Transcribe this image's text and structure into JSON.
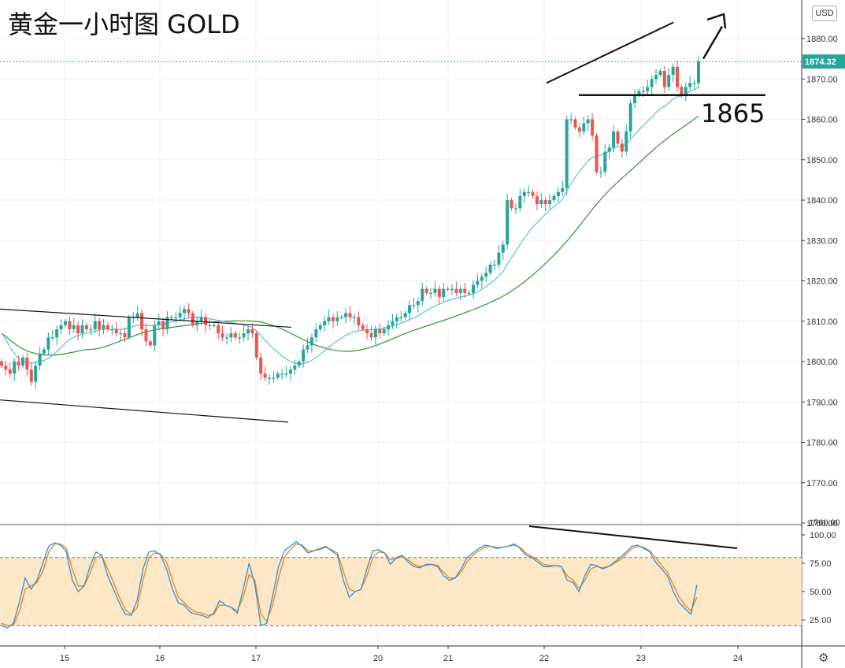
{
  "title": "黄金一小时图 GOLD",
  "currency_button": "USD",
  "settings_icon": "gear-icon",
  "colors": {
    "up": "#26a69a",
    "down": "#ef5350",
    "ma_fast": "#5bc0de",
    "ma_slow": "#3d8f3d",
    "stoch_k": "#2b95d6",
    "stoch_d": "#f0821e",
    "band": "#fde7c6",
    "price_tag": "#26a69a"
  },
  "chart_data": [
    {
      "type": "candlestick",
      "title": "黄金一小时图 GOLD",
      "currency": "USD",
      "y_ticks": [
        1760,
        1770,
        1780,
        1790,
        1800,
        1810,
        1820,
        1830,
        1840,
        1850,
        1860,
        1870,
        1880
      ],
      "y_tick_labels": [
        "1760.00",
        "1770.00",
        "1780.00",
        "1790.00",
        "1800.00",
        "1810.00",
        "1820.00",
        "1830.00",
        "1840.00",
        "1850.00",
        "1860.00",
        "1870.00",
        "1880.00"
      ],
      "ylim": [
        1757.5,
        1886.5
      ],
      "last_price": 1874.32,
      "last_price_label": "1874.32",
      "x_tick_labels": [
        "15",
        "16",
        "17",
        "20",
        "21",
        "22",
        "23",
        "24"
      ],
      "grid": true,
      "closes": [
        1799,
        1798,
        1797,
        1800,
        1799,
        1801,
        1798,
        1795,
        1799,
        1802,
        1803,
        1806,
        1806,
        1808,
        1809,
        1810,
        1808,
        1809,
        1807,
        1809,
        1808,
        1808,
        1810,
        1808,
        1809,
        1808,
        1808,
        1807,
        1807,
        1806,
        1811,
        1811,
        1812,
        1808,
        1805,
        1804,
        1809,
        1810,
        1808,
        1811,
        1811,
        1811,
        1812,
        1813,
        1812,
        1809,
        1810,
        1811,
        1809,
        1809,
        1809,
        1807,
        1806,
        1806,
        1807,
        1806,
        1806,
        1807,
        1808,
        1807,
        1801,
        1797,
        1796,
        1796,
        1796,
        1797,
        1797,
        1797,
        1798,
        1799,
        1800,
        1803,
        1804,
        1806,
        1808,
        1809,
        1810,
        1811,
        1810,
        1811,
        1811,
        1812,
        1811,
        1811,
        1809,
        1808,
        1807,
        1806,
        1808,
        1807,
        1808,
        1809,
        1810,
        1811,
        1811,
        1812,
        1814,
        1814,
        1815,
        1818,
        1817,
        1817,
        1818,
        1816,
        1818,
        1818,
        1818,
        1817,
        1818,
        1817,
        1817,
        1819,
        1820,
        1821,
        1822,
        1824,
        1824,
        1827,
        1829,
        1840,
        1838,
        1838,
        1841,
        1842,
        1842,
        1841,
        1839,
        1840,
        1839,
        1840,
        1841,
        1842,
        1843,
        1860,
        1860,
        1858,
        1857,
        1859,
        1860,
        1856,
        1847,
        1847,
        1852,
        1853,
        1857,
        1854,
        1852,
        1857,
        1864,
        1866,
        1867,
        1867,
        1868,
        1870,
        1871,
        1872,
        1868,
        1871,
        1873,
        1868,
        1866,
        1868,
        1869,
        1869,
        1874.3
      ],
      "ma_fast": [
        1807,
        1805.5,
        1803.5,
        1802,
        1800.8,
        1800,
        1799.8,
        1799.6,
        1799.8,
        1800,
        1800.3,
        1800.8,
        1801.5,
        1802.5,
        1803.5,
        1804.5,
        1805.5,
        1806,
        1806.5,
        1806.8,
        1807,
        1807.3,
        1807.5,
        1807.8,
        1808,
        1808,
        1808,
        1808,
        1808,
        1808.1,
        1808.4,
        1808.7,
        1809,
        1809.1,
        1809,
        1808.9,
        1809,
        1809.2,
        1809.3,
        1809.6,
        1809.8,
        1810.1,
        1810.3,
        1810.6,
        1810.8,
        1810.9,
        1811,
        1811,
        1810.8,
        1810.6,
        1810.4,
        1810.2,
        1810,
        1809.8,
        1809.7,
        1809.5,
        1809.3,
        1809,
        1808.8,
        1808.4,
        1807.6,
        1806.5,
        1805.3,
        1804.2,
        1803.2,
        1802.3,
        1801.4,
        1800.6,
        1800,
        1799.6,
        1799.4,
        1799.5,
        1799.8,
        1800.3,
        1801,
        1801.8,
        1802.7,
        1803.6,
        1804.4,
        1805.1,
        1805.8,
        1806.5,
        1807,
        1807.4,
        1807.6,
        1807.8,
        1807.9,
        1807.9,
        1808,
        1808.1,
        1808.3,
        1808.5,
        1808.8,
        1809.1,
        1809.5,
        1809.9,
        1810.4,
        1810.8,
        1811.3,
        1812,
        1812.6,
        1813.2,
        1813.8,
        1814.2,
        1814.7,
        1815.1,
        1815.4,
        1815.7,
        1816,
        1816.2,
        1816.4,
        1816.8,
        1817.3,
        1817.9,
        1818.6,
        1819.4,
        1820.2,
        1821.2,
        1822.3,
        1824.2,
        1825.8,
        1827.3,
        1829,
        1830.6,
        1832,
        1833.3,
        1834.4,
        1835.5,
        1836.5,
        1837.5,
        1838.4,
        1839.3,
        1840.2,
        1842.2,
        1844.1,
        1845.7,
        1847.1,
        1848.4,
        1849.7,
        1850.6,
        1850.9,
        1851.1,
        1851.6,
        1852.1,
        1852.8,
        1853.2,
        1853.4,
        1853.9,
        1855,
        1856.2,
        1857.4,
        1858.5,
        1859.5,
        1860.6,
        1861.7,
        1862.7,
        1863.2,
        1864.1,
        1865,
        1865.6,
        1865.8,
        1866.3,
        1866.9,
        1867.3,
        1868
      ]
    },
    {
      "type": "line",
      "indicator": "stochastic",
      "y_ticks": [
        25,
        50,
        75,
        100
      ],
      "y_tick_labels": [
        "25.00",
        "50.00",
        "75.00",
        "100.00"
      ],
      "ylim": [
        15,
        105
      ],
      "band": [
        20,
        80
      ],
      "series": [
        {
          "values": [
            20,
            18,
            22,
            40,
            62,
            52,
            60,
            75,
            90,
            93,
            91,
            85,
            60,
            50,
            55,
            72,
            85,
            82,
            64,
            52,
            40,
            30,
            29,
            42,
            70,
            85,
            86,
            82,
            70,
            52,
            40,
            38,
            32,
            30,
            29,
            27,
            31,
            42,
            38,
            36,
            31,
            52,
            75,
            56,
            20,
            22,
            46,
            72,
            86,
            90,
            94,
            90,
            84,
            86,
            88,
            90,
            86,
            82,
            60,
            45,
            50,
            52,
            70,
            86,
            87,
            84,
            74,
            80,
            82,
            76,
            72,
            71,
            74,
            74,
            72,
            64,
            60,
            62,
            70,
            80,
            84,
            88,
            91,
            90,
            88,
            89,
            90,
            92,
            88,
            82,
            80,
            76,
            72,
            72,
            73,
            72,
            60,
            58,
            50,
            64,
            74,
            73,
            70,
            72,
            76,
            80,
            85,
            90,
            91,
            88,
            85,
            76,
            70,
            64,
            50,
            40,
            35,
            30,
            56
          ]
        },
        {
          "values": [
            22,
            20,
            20,
            32,
            52,
            55,
            58,
            68,
            85,
            92,
            92,
            88,
            70,
            55,
            55,
            66,
            80,
            82,
            70,
            58,
            45,
            34,
            30,
            36,
            60,
            80,
            84,
            83,
            76,
            60,
            45,
            40,
            35,
            32,
            31,
            29,
            30,
            38,
            38,
            36,
            33,
            45,
            65,
            60,
            30,
            24,
            38,
            62,
            80,
            87,
            92,
            91,
            86,
            86,
            87,
            89,
            87,
            84,
            68,
            52,
            50,
            52,
            64,
            80,
            85,
            84,
            78,
            79,
            81,
            78,
            74,
            72,
            73,
            74,
            73,
            67,
            62,
            62,
            67,
            76,
            82,
            86,
            89,
            90,
            89,
            89,
            90,
            91,
            89,
            84,
            81,
            78,
            74,
            73,
            73,
            72,
            64,
            60,
            53,
            60,
            70,
            72,
            71,
            72,
            75,
            78,
            83,
            88,
            90,
            89,
            86,
            80,
            73,
            67,
            56,
            45,
            38,
            33,
            45
          ]
        }
      ]
    }
  ],
  "annotations": {
    "level_label": "1865"
  }
}
